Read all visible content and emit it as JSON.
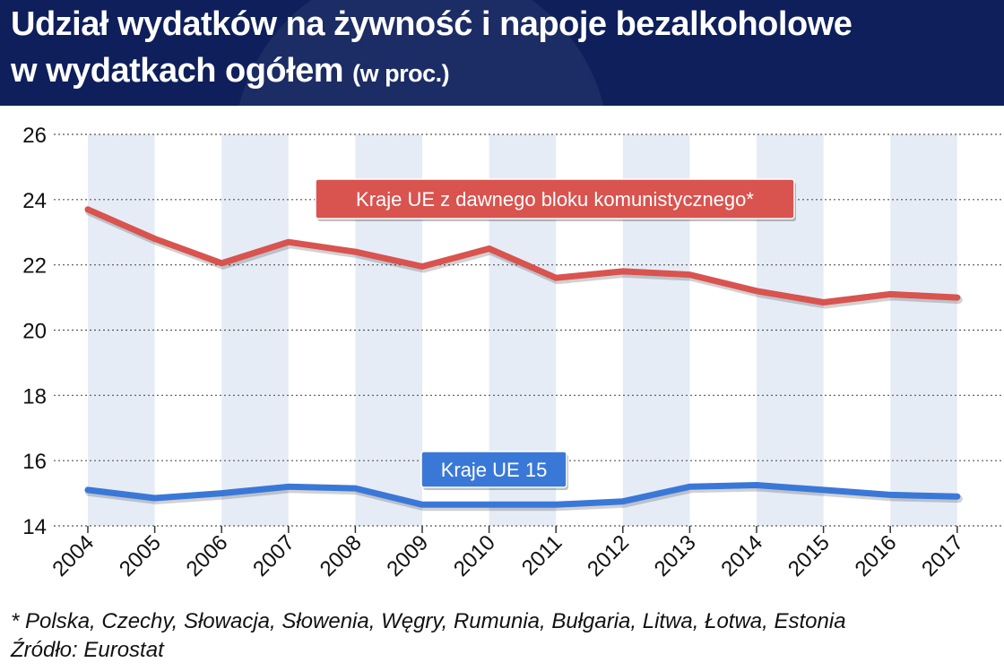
{
  "header": {
    "title_line1": "Udział wydatków na żywność i napoje bezalkoholowe",
    "title_line2": "w wydatkach ogółem",
    "title_unit": "(w proc.)"
  },
  "colors": {
    "header_bg": "#0e1f5b",
    "series_red": "#d9534f",
    "series_blue": "#3a78d8",
    "band": "#e6ecf6"
  },
  "chart_data": {
    "type": "line",
    "title": "Udział wydatków na żywność i napoje bezalkoholowe w wydatkach ogółem (w proc.)",
    "xlabel": "",
    "ylabel": "",
    "ylim": [
      14,
      26
    ],
    "yticks": [
      "14",
      "16",
      "18",
      "20",
      "22",
      "24",
      "26"
    ],
    "grid": "horizontal-dotted",
    "categories": [
      "2004",
      "2005",
      "2006",
      "2007",
      "2008",
      "2009",
      "2010",
      "2011",
      "2012",
      "2013",
      "2014",
      "2015",
      "2016",
      "2017"
    ],
    "series": [
      {
        "name": "Kraje UE z dawnego bloku komunistycznego*",
        "color": "#d9534f",
        "values": [
          23.7,
          22.8,
          22.05,
          22.7,
          22.4,
          21.95,
          22.5,
          21.6,
          21.8,
          21.7,
          21.2,
          20.85,
          21.1,
          21.0
        ]
      },
      {
        "name": "Kraje UE 15",
        "color": "#3a78d8",
        "values": [
          15.1,
          14.85,
          15.0,
          15.2,
          15.15,
          14.65,
          14.65,
          14.65,
          14.75,
          15.2,
          15.25,
          15.1,
          14.95,
          14.9
        ]
      }
    ]
  },
  "footnote": "* Polska, Czechy, Słowacja, Słowenia, Węgry, Rumunia, Bułgaria, Litwa, Łotwa, Estonia",
  "source": "Źródło: Eurostat"
}
